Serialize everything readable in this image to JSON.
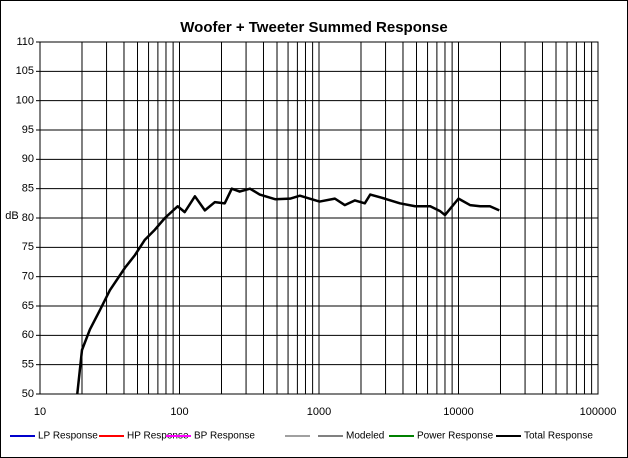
{
  "chart_data": {
    "type": "line",
    "title": "Woofer + Tweeter    Summed Response",
    "y_label": "dB",
    "log_x": true,
    "grid": true,
    "x": [
      18.5,
      20,
      22.8,
      26.9,
      31.7,
      40.6,
      48,
      56.5,
      66.6,
      78.6,
      97,
      109,
      129,
      152,
      179,
      211,
      237,
      270,
      320,
      376,
      484,
      620,
      730,
      860,
      1010,
      1300,
      1530,
      1810,
      2130,
      2330,
      2960,
      3800,
      4890,
      6270,
      7350,
      8000,
      10000,
      12100,
      14300,
      16800,
      19600
    ],
    "xlim": [
      10,
      100000
    ],
    "xticks": [
      10,
      100,
      1000,
      10000,
      100000
    ],
    "ylim": [
      50,
      110
    ],
    "yticks": [
      50,
      55,
      60,
      65,
      70,
      75,
      80,
      85,
      90,
      95,
      100,
      105,
      110
    ],
    "series": [
      {
        "name": "LP Response",
        "color": "#0000cc"
      },
      {
        "name": "HP Response",
        "color": "#ff0000"
      },
      {
        "name": "BP Response",
        "color": "#ff00ff"
      },
      {
        "name": "Modeled",
        "color": "#808080"
      },
      {
        "name": "Power Response",
        "color": "#008000"
      },
      {
        "name": "Total Response",
        "color": "#000000",
        "values": [
          50,
          57.5,
          61,
          64.3,
          67.7,
          71.5,
          73.7,
          76.3,
          78,
          80,
          82,
          81,
          83.7,
          81.3,
          82.7,
          82.5,
          85,
          84.5,
          85,
          84,
          83.2,
          83.3,
          83.8,
          83.3,
          82.8,
          83.3,
          82.2,
          83,
          82.5,
          84,
          83.3,
          82.5,
          82,
          82,
          81.2,
          80.5,
          83.3,
          82.2,
          82,
          82,
          81.3
        ]
      }
    ]
  }
}
